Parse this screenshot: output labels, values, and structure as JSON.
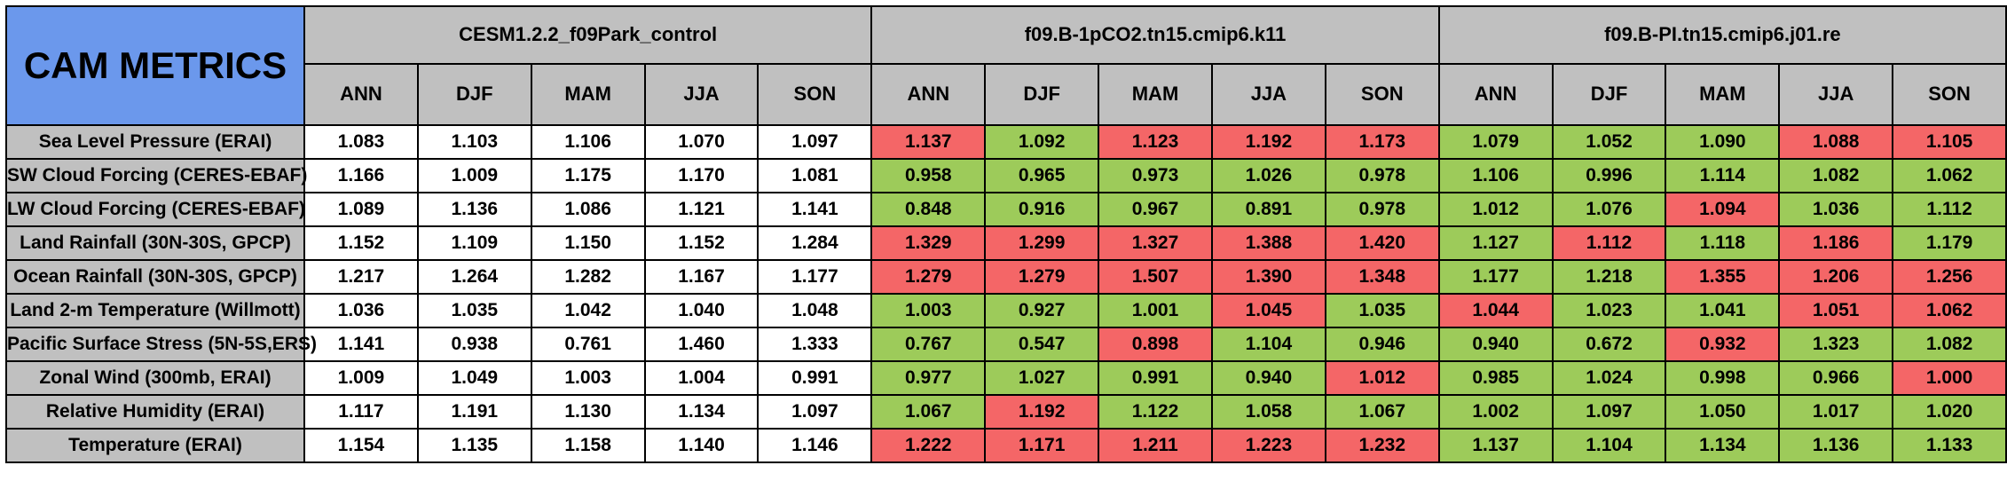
{
  "title": "CAM METRICS",
  "colors": {
    "corner": "#6b98ec",
    "header": "#c0c0c0",
    "control": "#ffffff",
    "better": "#9dcb5a",
    "worse": "#f46667"
  },
  "chart_data": {
    "type": "table",
    "title": "CAM METRICS",
    "cases": [
      "CESM1.2.2_f09Park_control",
      "f09.B-1pCO2.tn15.cmip6.k11",
      "f09.B-PI.tn15.cmip6.j01.re"
    ],
    "seasons": [
      "ANN",
      "DJF",
      "MAM",
      "JJA",
      "SON"
    ],
    "rows": [
      {
        "label": "Sea Level Pressure (ERAI)",
        "values": [
          [
            1.083,
            1.103,
            1.106,
            1.07,
            1.097
          ],
          [
            1.137,
            1.092,
            1.123,
            1.192,
            1.173
          ],
          [
            1.079,
            1.052,
            1.09,
            1.088,
            1.105
          ]
        ]
      },
      {
        "label": "SW Cloud Forcing (CERES-EBAF)",
        "values": [
          [
            1.166,
            1.009,
            1.175,
            1.17,
            1.081
          ],
          [
            0.958,
            0.965,
            0.973,
            1.026,
            0.978
          ],
          [
            1.106,
            0.996,
            1.114,
            1.082,
            1.062
          ]
        ]
      },
      {
        "label": "LW Cloud Forcing (CERES-EBAF)",
        "values": [
          [
            1.089,
            1.136,
            1.086,
            1.121,
            1.141
          ],
          [
            0.848,
            0.916,
            0.967,
            0.891,
            0.978
          ],
          [
            1.012,
            1.076,
            1.094,
            1.036,
            1.112
          ]
        ]
      },
      {
        "label": "Land Rainfall (30N-30S, GPCP)",
        "values": [
          [
            1.152,
            1.109,
            1.15,
            1.152,
            1.284
          ],
          [
            1.329,
            1.299,
            1.327,
            1.388,
            1.42
          ],
          [
            1.127,
            1.112,
            1.118,
            1.186,
            1.179
          ]
        ]
      },
      {
        "label": "Ocean Rainfall (30N-30S, GPCP)",
        "values": [
          [
            1.217,
            1.264,
            1.282,
            1.167,
            1.177
          ],
          [
            1.279,
            1.279,
            1.507,
            1.39,
            1.348
          ],
          [
            1.177,
            1.218,
            1.355,
            1.206,
            1.256
          ]
        ]
      },
      {
        "label": "Land 2-m Temperature (Willmott)",
        "values": [
          [
            1.036,
            1.035,
            1.042,
            1.04,
            1.048
          ],
          [
            1.003,
            0.927,
            1.001,
            1.045,
            1.035
          ],
          [
            1.044,
            1.023,
            1.041,
            1.051,
            1.062
          ]
        ]
      },
      {
        "label": "Pacific Surface Stress (5N-5S,ERS)",
        "values": [
          [
            1.141,
            0.938,
            0.761,
            1.46,
            1.333
          ],
          [
            0.767,
            0.547,
            0.898,
            1.104,
            0.946
          ],
          [
            0.94,
            0.672,
            0.932,
            1.323,
            1.082
          ]
        ]
      },
      {
        "label": "Zonal Wind (300mb, ERAI)",
        "values": [
          [
            1.009,
            1.049,
            1.003,
            1.004,
            0.991
          ],
          [
            0.977,
            1.027,
            0.991,
            0.94,
            1.012
          ],
          [
            0.985,
            1.024,
            0.998,
            0.966,
            1.0
          ]
        ]
      },
      {
        "label": "Relative Humidity (ERAI)",
        "values": [
          [
            1.117,
            1.191,
            1.13,
            1.134,
            1.097
          ],
          [
            1.067,
            1.192,
            1.122,
            1.058,
            1.067
          ],
          [
            1.002,
            1.097,
            1.05,
            1.017,
            1.02
          ]
        ]
      },
      {
        "label": "Temperature (ERAI)",
        "values": [
          [
            1.154,
            1.135,
            1.158,
            1.14,
            1.146
          ],
          [
            1.222,
            1.171,
            1.211,
            1.223,
            1.232
          ],
          [
            1.137,
            1.104,
            1.134,
            1.136,
            1.133
          ]
        ]
      }
    ]
  }
}
